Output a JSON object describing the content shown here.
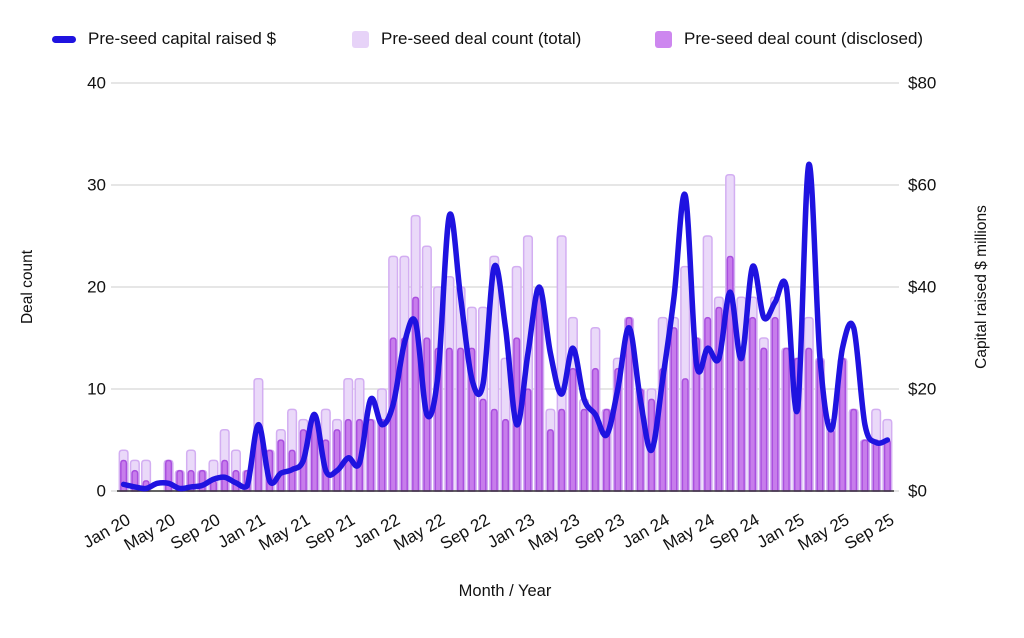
{
  "legend": {
    "items": [
      {
        "label": "Pre-seed capital raised $",
        "swatch": "line",
        "color": "#1f13e0"
      },
      {
        "label": "Pre-seed deal count (total)",
        "swatch": "square",
        "color": "#e7d3f8"
      },
      {
        "label": "Pre-seed deal count (disclosed)",
        "swatch": "square",
        "color": "#cd87ef"
      }
    ]
  },
  "colors": {
    "line": "#1f13e0",
    "bar_total_fill": "#ead9f9",
    "bar_total_stroke": "#d3aef2",
    "bar_disclosed_fill": "#c77deb",
    "bar_disclosed_stroke": "#aa4fdf",
    "gridline": "#d6d6d6",
    "axis_line": "#333333",
    "background": "#ffffff"
  },
  "chart_data": {
    "type": "combo-bar-line",
    "title": "",
    "xlabel": "Month / Year",
    "grid": true,
    "legend_position": "top",
    "x": [
      "Jan 20",
      "Feb 20",
      "Mar 20",
      "Apr 20",
      "May 20",
      "Jun 20",
      "Jul 20",
      "Aug 20",
      "Sep 20",
      "Oct 20",
      "Nov 20",
      "Dec 20",
      "Jan 21",
      "Feb 21",
      "Mar 21",
      "Apr 21",
      "May 21",
      "Jun 21",
      "Jul 21",
      "Aug 21",
      "Sep 21",
      "Oct 21",
      "Nov 21",
      "Dec 21",
      "Jan 22",
      "Feb 22",
      "Mar 22",
      "Apr 22",
      "May 22",
      "Jun 22",
      "Jul 22",
      "Aug 22",
      "Sep 22",
      "Oct 22",
      "Nov 22",
      "Dec 22",
      "Jan 23",
      "Feb 23",
      "Mar 23",
      "Apr 23",
      "May 23",
      "Jun 23",
      "Jul 23",
      "Aug 23",
      "Sep 23",
      "Oct 23",
      "Nov 23",
      "Dec 23",
      "Jan 24",
      "Feb 24",
      "Mar 24",
      "Apr 24",
      "May 24",
      "Jun 24",
      "Jul 24",
      "Aug 24",
      "Sep 24",
      "Oct 24",
      "Nov 24",
      "Dec 24",
      "Jan 25",
      "Feb 25",
      "Mar 25",
      "Apr 25",
      "May 25",
      "Jun 25",
      "Jul 25",
      "Aug 25",
      "Sep 25"
    ],
    "x_tick_every": 4,
    "x_tick_labels": [
      "Jan 20",
      "May 20",
      "Sep 20",
      "Jan 21",
      "May 21",
      "Sep 21",
      "Jan 22",
      "May 22",
      "Sep 22",
      "Jan 23",
      "May 23",
      "Sep 23",
      "Jan 24",
      "May 24",
      "Sep 24",
      "Jan 25",
      "May 25",
      "Sep 25"
    ],
    "left_axis": {
      "title": "Deal count",
      "ticks": [
        0,
        10,
        20,
        30,
        40
      ],
      "range": [
        0,
        40
      ]
    },
    "right_axis": {
      "title": "Capital raised $ millions",
      "ticks": [
        "$0",
        "$20",
        "$40",
        "$60",
        "$80"
      ],
      "tick_values": [
        0,
        20,
        40,
        60,
        80
      ],
      "range": [
        0,
        80
      ]
    },
    "series": [
      {
        "name": "Pre-seed deal count (total)",
        "type": "bar",
        "axis": "left",
        "values": [
          4,
          3,
          3,
          0,
          3,
          2,
          4,
          2,
          3,
          6,
          4,
          2,
          11,
          4,
          6,
          8,
          7,
          7,
          8,
          7,
          11,
          11,
          7,
          10,
          23,
          23,
          27,
          24,
          20,
          21,
          20,
          18,
          18,
          23,
          13,
          22,
          25,
          20,
          8,
          25,
          17,
          9,
          16,
          8,
          13,
          17,
          10,
          10,
          17,
          17,
          22,
          15,
          25,
          19,
          31,
          19,
          19,
          15,
          19,
          14,
          13,
          17,
          13,
          7,
          13,
          8,
          5,
          8,
          7
        ]
      },
      {
        "name": "Pre-seed deal count (disclosed)",
        "type": "bar",
        "axis": "left",
        "values": [
          3,
          2,
          1,
          0,
          3,
          2,
          2,
          2,
          1,
          3,
          2,
          2,
          6,
          4,
          5,
          4,
          6,
          7,
          5,
          6,
          7,
          7,
          7,
          7,
          15,
          15,
          19,
          15,
          14,
          14,
          14,
          14,
          9,
          8,
          7,
          15,
          10,
          20,
          6,
          8,
          12,
          8,
          12,
          8,
          12,
          17,
          10,
          9,
          12,
          16,
          11,
          15,
          17,
          18,
          23,
          14,
          17,
          14,
          17,
          14,
          13,
          14,
          13,
          6,
          13,
          8,
          5,
          5,
          5
        ]
      },
      {
        "name": "Pre-seed capital raised $",
        "type": "line",
        "axis": "right",
        "values": [
          1.3,
          0.8,
          0.5,
          1.5,
          1.5,
          0.5,
          0.8,
          1.1,
          2.3,
          2.7,
          1.6,
          1.0,
          13,
          2,
          3.5,
          4.2,
          6,
          15,
          4,
          4,
          6.5,
          5.5,
          18,
          13,
          17,
          29,
          33,
          15,
          23,
          54,
          38,
          22,
          21,
          44,
          32,
          13,
          27,
          40,
          27,
          19,
          28,
          18,
          15,
          11,
          20,
          32,
          18,
          8,
          22,
          38,
          58,
          25,
          28,
          26,
          39,
          26,
          44,
          34,
          37,
          40,
          16,
          64,
          26,
          12,
          28,
          32,
          13,
          9.5,
          10
        ]
      }
    ]
  }
}
